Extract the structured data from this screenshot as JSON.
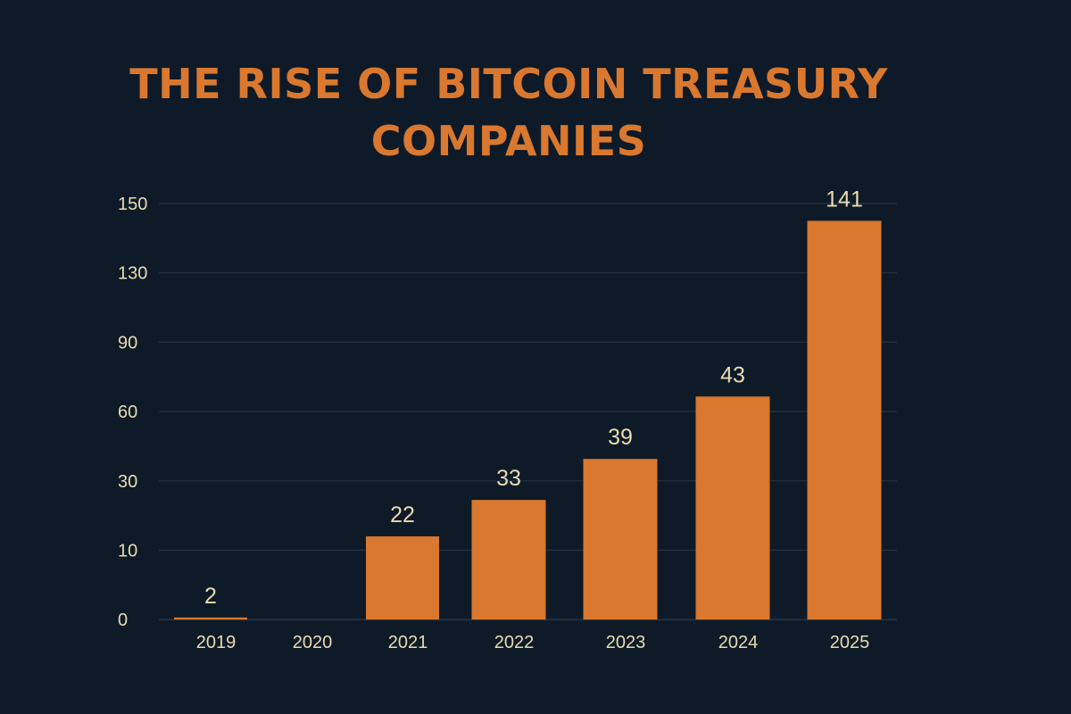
{
  "chart_data": {
    "type": "bar",
    "title": "THE RISE OF BITCOIN TREASURY COMPANIES",
    "title_lines": [
      "THE RISE OF BITCOIN TREASURY",
      "COMPANIES"
    ],
    "categories": [
      "2019",
      "2020",
      "2021",
      "2022",
      "2023",
      "2024",
      "2025"
    ],
    "values": [
      2,
      0,
      22,
      33,
      39,
      43,
      141
    ],
    "data_labels": [
      "2",
      "",
      "22",
      "33",
      "39",
      "43",
      "141"
    ],
    "bar_heights_on_axis": [
      0.3,
      0,
      14,
      24.5,
      39.5,
      66.5,
      145
    ],
    "ytick_labels": [
      "0",
      "10",
      "30",
      "60",
      "90",
      "130",
      "150"
    ],
    "xlabel": "",
    "ylabel": "",
    "grid": true,
    "legend": "none",
    "colors": {
      "bar": "#d9782e",
      "title": "#d9782e",
      "text": "#e8dcb0",
      "grid": "#243447",
      "background": "#0e1a28"
    }
  }
}
